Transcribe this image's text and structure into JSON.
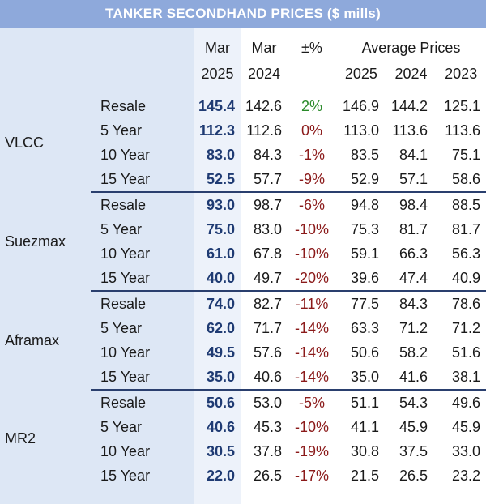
{
  "title": "TANKER SECONDHAND PRICES ($ mills)",
  "header": {
    "col_mar2025": [
      "Mar",
      "2025"
    ],
    "col_mar2024": [
      "Mar",
      "2024"
    ],
    "col_change": "±%",
    "avg_label": "Average Prices",
    "avg_years": [
      "2025",
      "2024",
      "2023"
    ]
  },
  "groups": [
    {
      "name": "VLCC",
      "rows": [
        {
          "age": "Resale",
          "mar2025": "145.4",
          "mar2024": "142.6",
          "change": "2%",
          "avg2025": "146.9",
          "avg2024": "144.2",
          "avg2023": "125.1"
        },
        {
          "age": "5 Year",
          "mar2025": "112.3",
          "mar2024": "112.6",
          "change": "0%",
          "avg2025": "113.0",
          "avg2024": "113.6",
          "avg2023": "113.6"
        },
        {
          "age": "10 Year",
          "mar2025": "83.0",
          "mar2024": "84.3",
          "change": "-1%",
          "avg2025": "83.5",
          "avg2024": "84.1",
          "avg2023": "75.1"
        },
        {
          "age": "15 Year",
          "mar2025": "52.5",
          "mar2024": "57.7",
          "change": "-9%",
          "avg2025": "52.9",
          "avg2024": "57.1",
          "avg2023": "58.6"
        }
      ]
    },
    {
      "name": "Suezmax",
      "rows": [
        {
          "age": "Resale",
          "mar2025": "93.0",
          "mar2024": "98.7",
          "change": "-6%",
          "avg2025": "94.8",
          "avg2024": "98.4",
          "avg2023": "88.5"
        },
        {
          "age": "5 Year",
          "mar2025": "75.0",
          "mar2024": "83.0",
          "change": "-10%",
          "avg2025": "75.3",
          "avg2024": "81.7",
          "avg2023": "81.7"
        },
        {
          "age": "10 Year",
          "mar2025": "61.0",
          "mar2024": "67.8",
          "change": "-10%",
          "avg2025": "59.1",
          "avg2024": "66.3",
          "avg2023": "56.3"
        },
        {
          "age": "15 Year",
          "mar2025": "40.0",
          "mar2024": "49.7",
          "change": "-20%",
          "avg2025": "39.6",
          "avg2024": "47.4",
          "avg2023": "40.9"
        }
      ]
    },
    {
      "name": "Aframax",
      "rows": [
        {
          "age": "Resale",
          "mar2025": "74.0",
          "mar2024": "82.7",
          "change": "-11%",
          "avg2025": "77.5",
          "avg2024": "84.3",
          "avg2023": "78.6"
        },
        {
          "age": "5 Year",
          "mar2025": "62.0",
          "mar2024": "71.7",
          "change": "-14%",
          "avg2025": "63.3",
          "avg2024": "71.2",
          "avg2023": "71.2"
        },
        {
          "age": "10 Year",
          "mar2025": "49.5",
          "mar2024": "57.6",
          "change": "-14%",
          "avg2025": "50.6",
          "avg2024": "58.2",
          "avg2023": "51.6"
        },
        {
          "age": "15 Year",
          "mar2025": "35.0",
          "mar2024": "40.6",
          "change": "-14%",
          "avg2025": "35.0",
          "avg2024": "41.6",
          "avg2023": "38.1"
        }
      ]
    },
    {
      "name": "MR2",
      "rows": [
        {
          "age": "Resale",
          "mar2025": "50.6",
          "mar2024": "53.0",
          "change": "-5%",
          "avg2025": "51.1",
          "avg2024": "54.3",
          "avg2023": "49.6"
        },
        {
          "age": "5 Year",
          "mar2025": "40.6",
          "mar2024": "45.3",
          "change": "-10%",
          "avg2025": "41.1",
          "avg2024": "45.9",
          "avg2023": "45.9"
        },
        {
          "age": "10 Year",
          "mar2025": "30.5",
          "mar2024": "37.8",
          "change": "-19%",
          "avg2025": "30.8",
          "avg2024": "37.5",
          "avg2023": "33.0"
        },
        {
          "age": "15 Year",
          "mar2025": "22.0",
          "mar2024": "26.5",
          "change": "-17%",
          "avg2025": "21.5",
          "avg2024": "26.5",
          "avg2023": "23.2"
        }
      ]
    }
  ],
  "colors": {
    "title_bg": "#8ea9db",
    "left_band": "#dde7f5",
    "highlight_col": "#edf2fa",
    "emphasis_text": "#1f3b73",
    "positive": "#2a8a2a",
    "negative": "#8b1a1a",
    "separator": "#2a3f6e"
  }
}
